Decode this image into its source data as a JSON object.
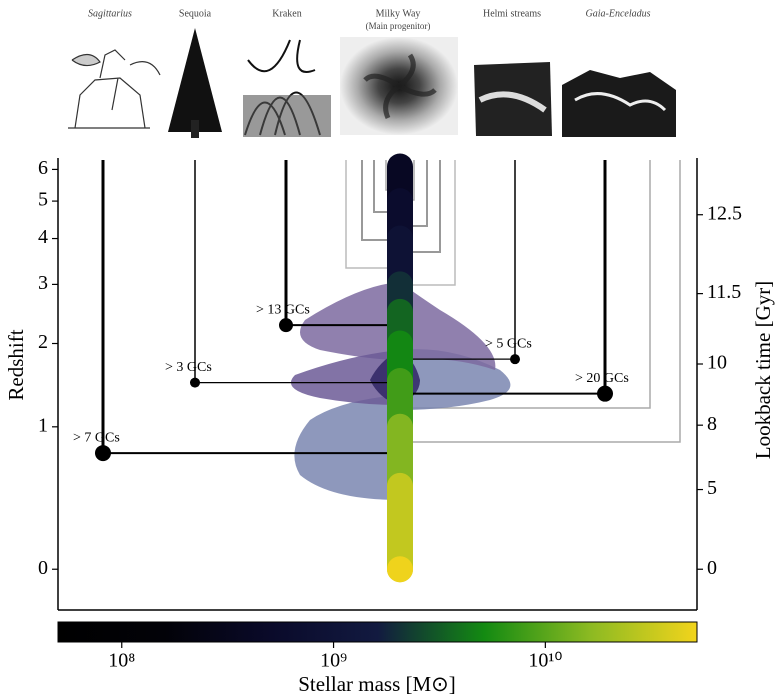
{
  "chart_data": {
    "type": "merger-tree",
    "ylabel": "Redshift",
    "y2label": "Lookback time [Gyr]",
    "xlabel": "Stellar mass [M⊙]",
    "ylim": [
      -0.18,
      6.4
    ],
    "yscale": "log1p",
    "yticks": [
      0,
      1,
      2,
      3,
      4,
      5,
      6
    ],
    "y2scale": "lookback-time",
    "y2ticks": [
      0,
      5,
      8,
      10,
      11.5,
      12.5
    ],
    "xlim": [
      50000000,
      52000000000
    ],
    "xscale": "log",
    "xticks": [
      {
        "value": 100000000,
        "label": "10⁸"
      },
      {
        "value": 1000000000,
        "label": "10⁹"
      },
      {
        "value": 10000000000,
        "label": "10¹⁰"
      }
    ],
    "colormap": [
      "#000000",
      "#020208",
      "#0a0a2a",
      "#121a40",
      "#138a12",
      "#8cba22",
      "#f2d41c"
    ],
    "main_branch": {
      "name": "Milky Way",
      "subtitle": "(Main progenitor)",
      "z": [
        6.1,
        5,
        4,
        3,
        2.5,
        2,
        1.5,
        1,
        0.5,
        0
      ],
      "mass": [
        400000000,
        600000000,
        900000000,
        2000000000,
        3500000000,
        5000000000,
        8000000000,
        15000000000,
        30000000000,
        50000000000
      ]
    },
    "series": [
      {
        "name": "Sagittarius",
        "z": 0.76,
        "label": "> 7 GCs"
      },
      {
        "name": "Sequoia",
        "z": 1.48,
        "label": "> 3 GCs"
      },
      {
        "name": "Kraken",
        "z": 2.28,
        "label": "> 13 GCs"
      },
      {
        "name": "Helmi streams",
        "z": 1.78,
        "label": "> 5 GCs"
      },
      {
        "name": "Gaia-Enceladus",
        "z": 1.35,
        "label": "> 20 GCs"
      }
    ]
  }
}
